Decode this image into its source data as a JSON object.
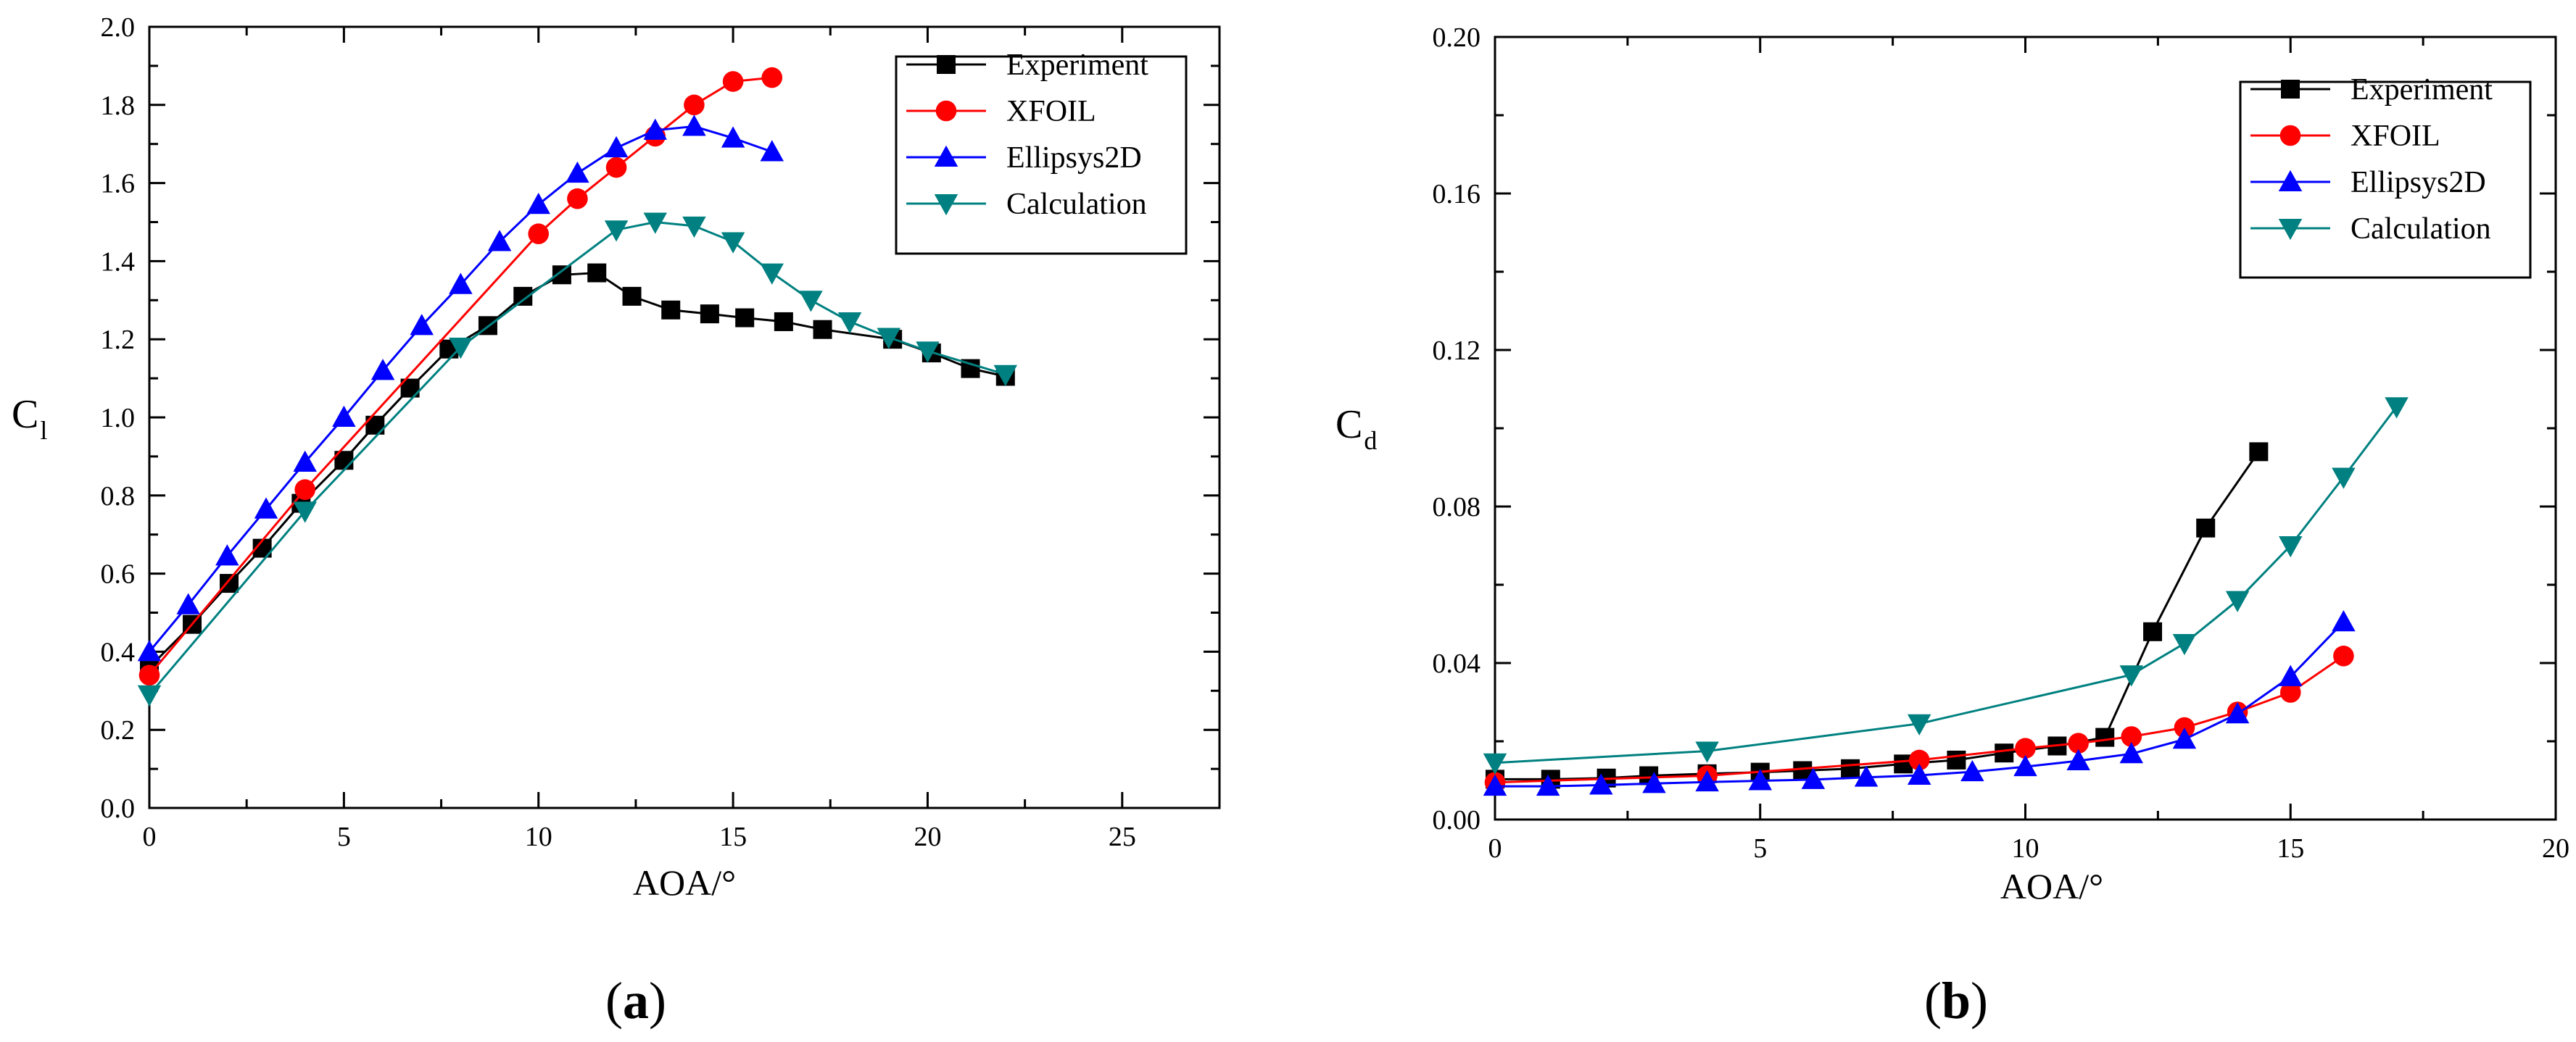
{
  "chart_data": [
    {
      "type": "line",
      "panel_label": "a",
      "xlabel": "AOA/°",
      "ylabel": "C",
      "ylabel_sub": "l",
      "xlim": [
        0,
        27.5
      ],
      "ylim": [
        0,
        2.0
      ],
      "xticks": [
        0,
        5,
        10,
        15,
        20,
        25
      ],
      "xtick_labels": [
        "0",
        "5",
        "10",
        "15",
        "20",
        "25"
      ],
      "yticks": [
        0,
        0.2,
        0.4,
        0.6,
        0.8,
        1.0,
        1.2,
        1.4,
        1.6,
        1.8,
        2.0
      ],
      "ytick_labels": [
        "0.0",
        "0.2",
        "0.4",
        "0.6",
        "0.8",
        "1.0",
        "1.2",
        "1.4",
        "1.6",
        "1.8",
        "2.0"
      ],
      "legend_position": "top-right",
      "grid": false,
      "series": [
        {
          "name": "Experiment",
          "color": "#000000",
          "marker": "square",
          "x": [
            0,
            1.1,
            2.05,
            2.9,
            3.9,
            5.0,
            5.8,
            6.7,
            7.7,
            8.7,
            9.6,
            10.6,
            11.5,
            12.4,
            13.4,
            14.4,
            15.3,
            16.3,
            17.3,
            19.1,
            20.1,
            21.1,
            22.0
          ],
          "y": [
            0.36,
            0.47,
            0.575,
            0.665,
            0.78,
            0.89,
            0.98,
            1.075,
            1.175,
            1.235,
            1.31,
            1.365,
            1.37,
            1.31,
            1.275,
            1.265,
            1.255,
            1.245,
            1.225,
            1.2,
            1.165,
            1.125,
            1.105
          ]
        },
        {
          "name": "XFOIL",
          "color": "#ff0000",
          "marker": "circle",
          "x": [
            0,
            4,
            10,
            11,
            12,
            13,
            14,
            15,
            16
          ],
          "y": [
            0.34,
            0.815,
            1.47,
            1.56,
            1.64,
            1.72,
            1.8,
            1.86,
            1.87
          ]
        },
        {
          "name": "Ellipsys2D",
          "color": "#0000ff",
          "marker": "triangle-up",
          "x": [
            0,
            1,
            2,
            3,
            4,
            5,
            6,
            7,
            8,
            9,
            10,
            11,
            12,
            13,
            14,
            15,
            16
          ],
          "y": [
            0.4,
            0.52,
            0.645,
            0.765,
            0.885,
            1.0,
            1.12,
            1.235,
            1.34,
            1.45,
            1.545,
            1.625,
            1.69,
            1.735,
            1.745,
            1.715,
            1.68
          ]
        },
        {
          "name": "Calculation",
          "color": "#008080",
          "marker": "triangle-down",
          "x": [
            0,
            4,
            8,
            12,
            13,
            14,
            15,
            16,
            17,
            18,
            19,
            20,
            22
          ],
          "y": [
            0.29,
            0.76,
            1.18,
            1.48,
            1.5,
            1.49,
            1.45,
            1.37,
            1.3,
            1.245,
            1.205,
            1.17,
            1.11
          ]
        }
      ]
    },
    {
      "type": "line",
      "panel_label": "b",
      "xlabel": "AOA/°",
      "ylabel": "C",
      "ylabel_sub": "d",
      "xlim": [
        0,
        20
      ],
      "ylim": [
        0,
        0.2
      ],
      "xticks": [
        0,
        5,
        10,
        15,
        20
      ],
      "xtick_labels": [
        "0",
        "5",
        "10",
        "15",
        "20"
      ],
      "yticks": [
        0,
        0.04,
        0.08,
        0.12,
        0.16,
        0.2
      ],
      "ytick_labels": [
        "0.00",
        "0.04",
        "0.08",
        "0.12",
        "0.16",
        "0.20"
      ],
      "legend_position": "top-right",
      "grid": false,
      "series": [
        {
          "name": "Experiment",
          "color": "#000000",
          "marker": "square",
          "x": [
            0,
            1.05,
            2.1,
            2.9,
            4.0,
            5.0,
            5.8,
            6.7,
            7.7,
            8.7,
            9.6,
            10.6,
            11.5,
            12.4,
            13.4,
            14.4
          ],
          "y": [
            0.0103,
            0.0103,
            0.0106,
            0.0112,
            0.0117,
            0.0121,
            0.0125,
            0.013,
            0.0142,
            0.0152,
            0.017,
            0.0188,
            0.021,
            0.048,
            0.0745,
            0.094
          ]
        },
        {
          "name": "XFOIL",
          "color": "#ff0000",
          "marker": "circle",
          "x": [
            0,
            4,
            8,
            10,
            11,
            12,
            13,
            14,
            15,
            16
          ],
          "y": [
            0.0095,
            0.0112,
            0.0152,
            0.0182,
            0.0195,
            0.0212,
            0.0235,
            0.0275,
            0.0325,
            0.0418
          ]
        },
        {
          "name": "Ellipsys2D",
          "color": "#0000ff",
          "marker": "triangle-up",
          "x": [
            0,
            1,
            2,
            3,
            4,
            5,
            6,
            7,
            8,
            9,
            10,
            11,
            12,
            13,
            14,
            15,
            16
          ],
          "y": [
            0.0085,
            0.0085,
            0.0088,
            0.0092,
            0.0096,
            0.0099,
            0.0102,
            0.0108,
            0.0113,
            0.0122,
            0.0135,
            0.015,
            0.0168,
            0.0205,
            0.027,
            0.0365,
            0.0505
          ]
        },
        {
          "name": "Calculation",
          "color": "#008080",
          "marker": "triangle-down",
          "x": [
            0,
            4,
            8,
            12,
            13,
            14,
            15,
            16,
            17
          ],
          "y": [
            0.0145,
            0.0175,
            0.0245,
            0.037,
            0.045,
            0.056,
            0.07,
            0.0875,
            0.1055
          ]
        }
      ]
    }
  ]
}
